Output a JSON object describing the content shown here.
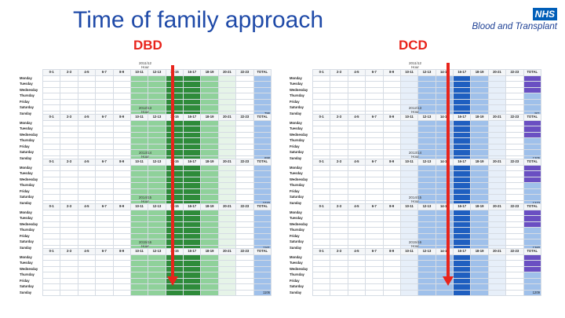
{
  "title": "Time of family approach",
  "left_label": "DBD",
  "right_label": "DCD",
  "logo": {
    "nhs": "NHS",
    "subtitle": "Blood and Transplant"
  },
  "hours": [
    "0-1",
    "2-3",
    "4-5",
    "6-7",
    "8-9",
    "10-11",
    "12-13",
    "14-15",
    "16-17",
    "18-19",
    "20-21",
    "22-23",
    "TOTAL"
  ],
  "days": [
    "Monday",
    "Tuesday",
    "Wednesday",
    "Thursday",
    "Friday",
    "Saturday",
    "Sunday"
  ],
  "hour_label": "Hour",
  "dbd_years": [
    "2011/12",
    "2012/13",
    "2013/14",
    "2014/15",
    "2015/16"
  ],
  "dcd_years": [
    "2011/12",
    "2012/13",
    "2013/14",
    "2014/15",
    "2015/16"
  ],
  "dbd_totals": [
    "796",
    "698",
    "1020",
    "1161",
    "1106"
  ],
  "dcd_totals": [
    "911",
    "1205",
    "1273",
    "1260",
    "1209"
  ],
  "colors": {
    "dbd_high": "#2e8b3a",
    "dbd_mid": "#8fd19a",
    "dbd_low": "#e6f4e8",
    "dcd_high": "#1f5fc0",
    "dcd_mid": "#9fc0ea",
    "dcd_low": "#e7eff9",
    "dcd_total_high": "#6a4fc2",
    "arrow": "#e8241c"
  }
}
